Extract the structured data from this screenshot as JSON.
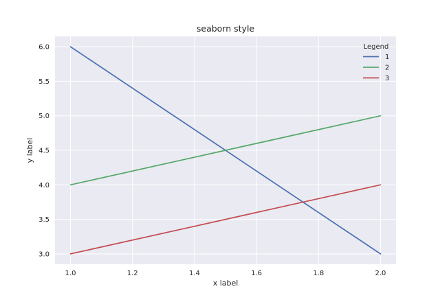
{
  "chart_data": {
    "type": "line",
    "title": "seaborn style",
    "xlabel": "x label",
    "ylabel": "y label",
    "xlim": [
      0.95,
      2.05
    ],
    "ylim": [
      2.85,
      6.15
    ],
    "xticks": [
      1.0,
      1.2,
      1.4,
      1.6,
      1.8,
      2.0
    ],
    "xtick_labels": [
      "1.0",
      "1.2",
      "1.4",
      "1.6",
      "1.8",
      "2.0"
    ],
    "yticks": [
      3.0,
      3.5,
      4.0,
      4.5,
      5.0,
      5.5,
      6.0
    ],
    "ytick_labels": [
      "3.0",
      "3.5",
      "4.0",
      "4.5",
      "5.0",
      "5.5",
      "6.0"
    ],
    "grid": true,
    "background": "#eaeaf2",
    "legend": {
      "title": "Legend",
      "placement": "top-right"
    },
    "series": [
      {
        "name": "1",
        "color": "#4c72b0",
        "x": [
          1.0,
          2.0
        ],
        "y": [
          6.0,
          3.0
        ]
      },
      {
        "name": "2",
        "color": "#55a868",
        "x": [
          1.0,
          2.0
        ],
        "y": [
          4.0,
          5.0
        ]
      },
      {
        "name": "3",
        "color": "#c44e52",
        "x": [
          1.0,
          2.0
        ],
        "y": [
          3.0,
          4.0
        ]
      }
    ]
  }
}
